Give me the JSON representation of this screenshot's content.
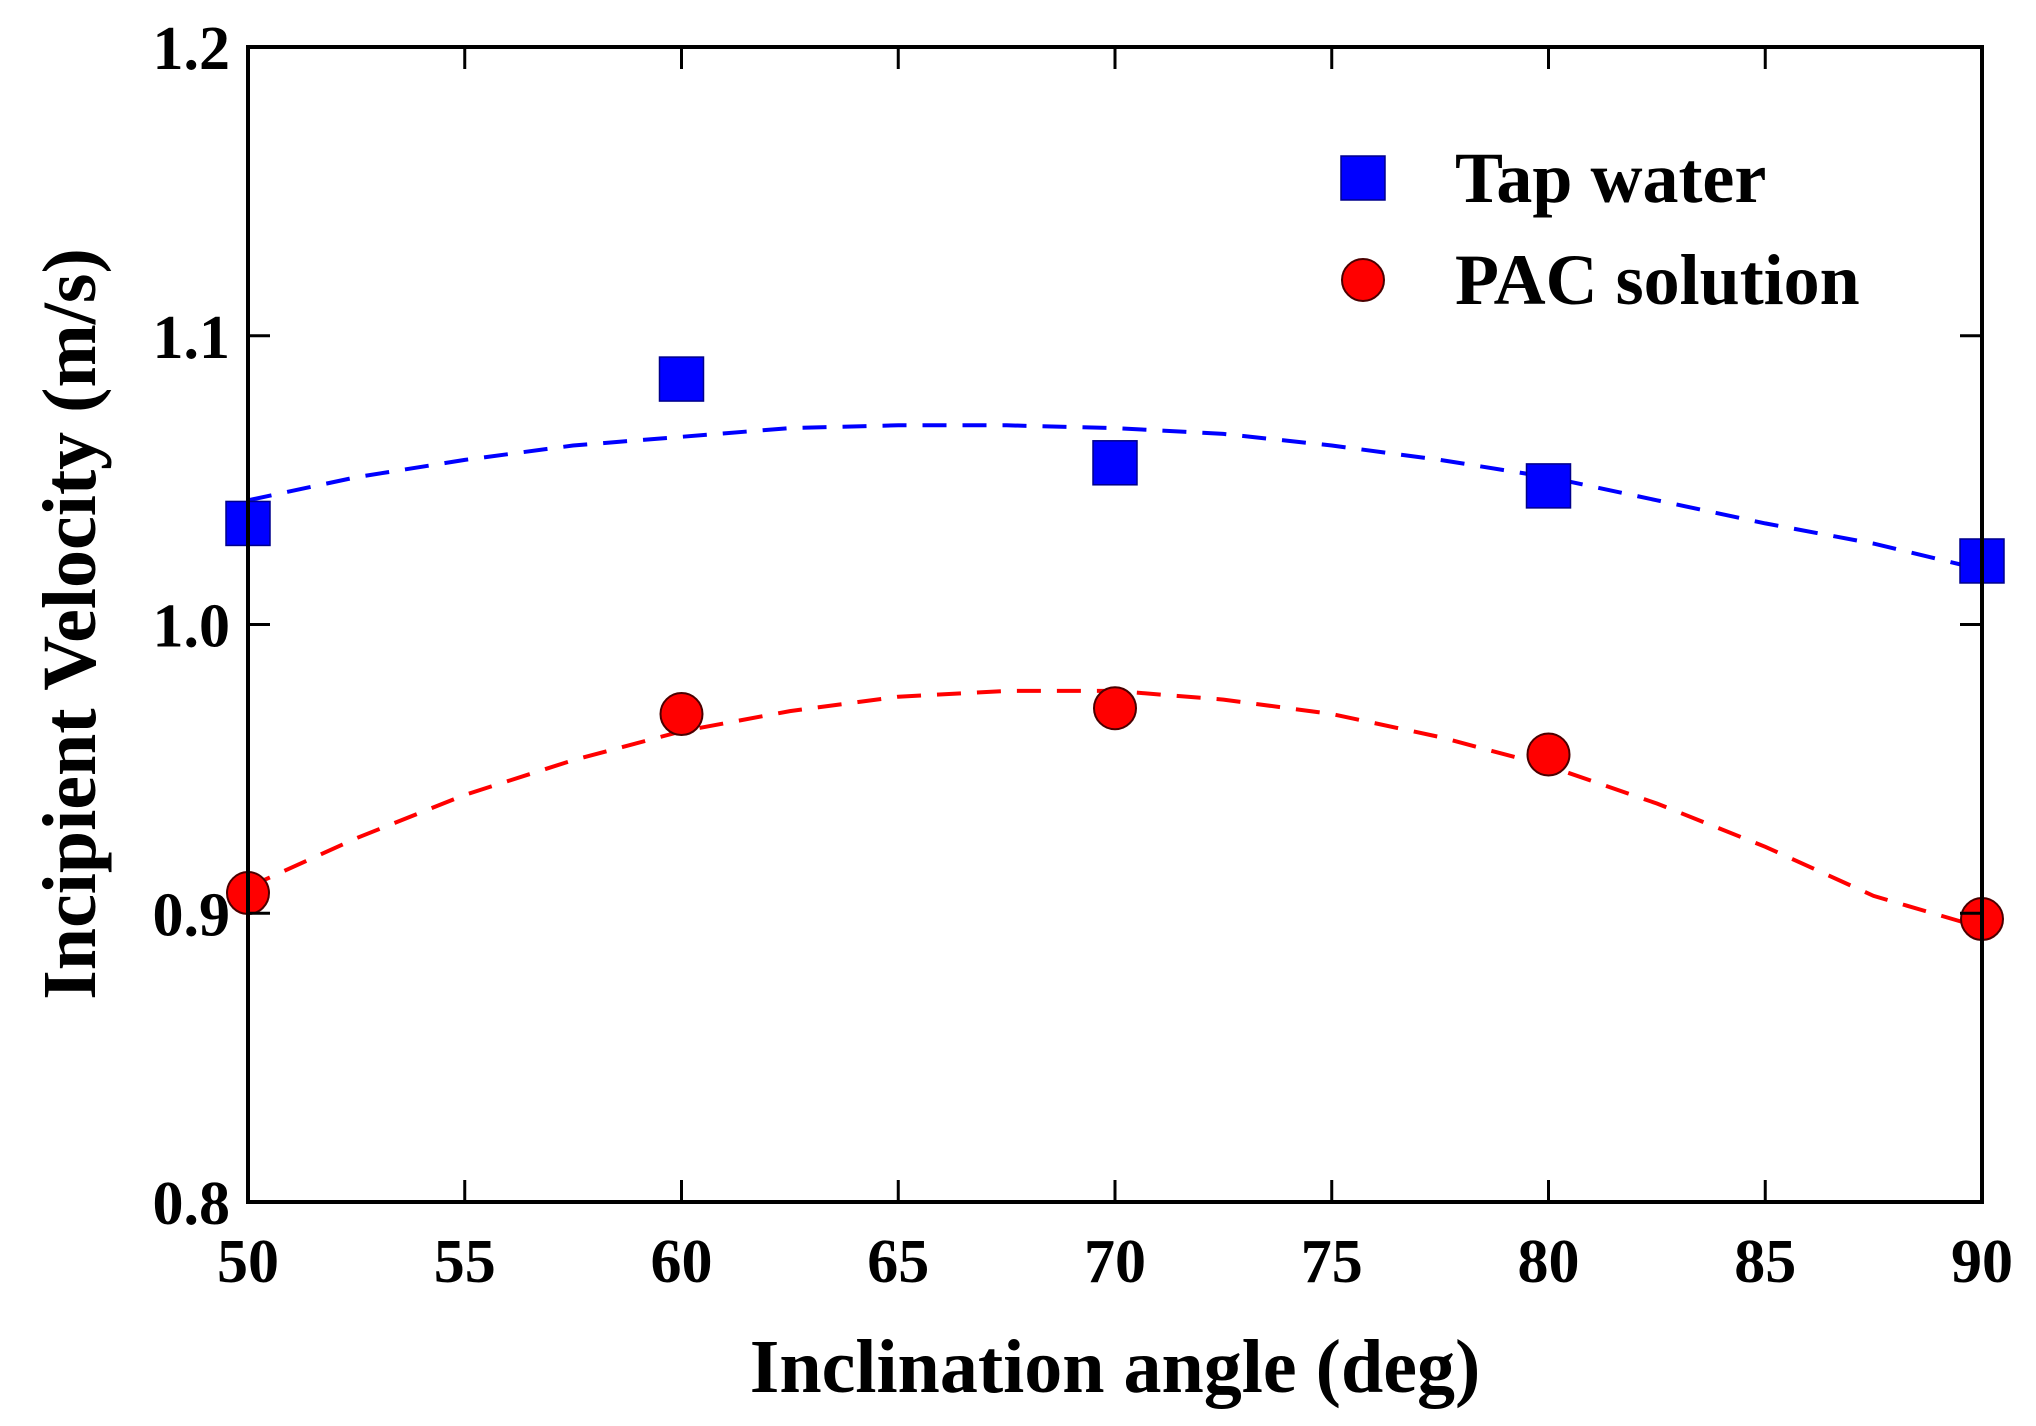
{
  "chart_data": {
    "type": "scatter",
    "title": "",
    "xlabel": "Inclination angle (deg)",
    "ylabel": "Incipient Velocity (m/s)",
    "xlim": [
      50,
      90
    ],
    "ylim": [
      0.8,
      1.2
    ],
    "xticks": [
      50,
      55,
      60,
      65,
      70,
      75,
      80,
      85,
      90
    ],
    "xtick_labels": [
      "50",
      "55",
      "60",
      "65",
      "70",
      "75",
      "80",
      "85",
      "90"
    ],
    "yticks": [
      0.8,
      0.9,
      1.0,
      1.1,
      1.2
    ],
    "ytick_labels": [
      "0.8",
      "0.9",
      "1.0",
      "1.1",
      "1.2"
    ],
    "grid": false,
    "legend_position": "top-right",
    "series": [
      {
        "name": "Tap water",
        "marker": "square",
        "color": "#0000ff",
        "x": [
          50,
          60,
          70,
          80,
          90
        ],
        "y": [
          1.035,
          1.085,
          1.056,
          1.048,
          1.022
        ],
        "fit": {
          "style": "dashed",
          "x": [
            50,
            52.5,
            55,
            57.5,
            60,
            62.5,
            65,
            67.5,
            70,
            72.5,
            75,
            77.5,
            80,
            82.5,
            85,
            87.5,
            90
          ],
          "y": [
            1.043,
            1.051,
            1.057,
            1.062,
            1.065,
            1.068,
            1.069,
            1.069,
            1.068,
            1.066,
            1.062,
            1.057,
            1.051,
            1.043,
            1.035,
            1.028,
            1.019
          ]
        }
      },
      {
        "name": "PAC solution",
        "marker": "circle",
        "color": "#ff0000",
        "x": [
          50,
          60,
          70,
          80,
          90
        ],
        "y": [
          0.907,
          0.969,
          0.971,
          0.955,
          0.898
        ],
        "fit": {
          "style": "dashed",
          "x": [
            50,
            52.5,
            55,
            57.5,
            60,
            62.5,
            65,
            67.5,
            70,
            72.5,
            75,
            77.5,
            80,
            82.5,
            85,
            87.5,
            90
          ],
          "y": [
            0.909,
            0.926,
            0.941,
            0.953,
            0.963,
            0.97,
            0.975,
            0.977,
            0.977,
            0.974,
            0.969,
            0.961,
            0.951,
            0.938,
            0.923,
            0.906,
            0.895
          ]
        }
      }
    ]
  }
}
